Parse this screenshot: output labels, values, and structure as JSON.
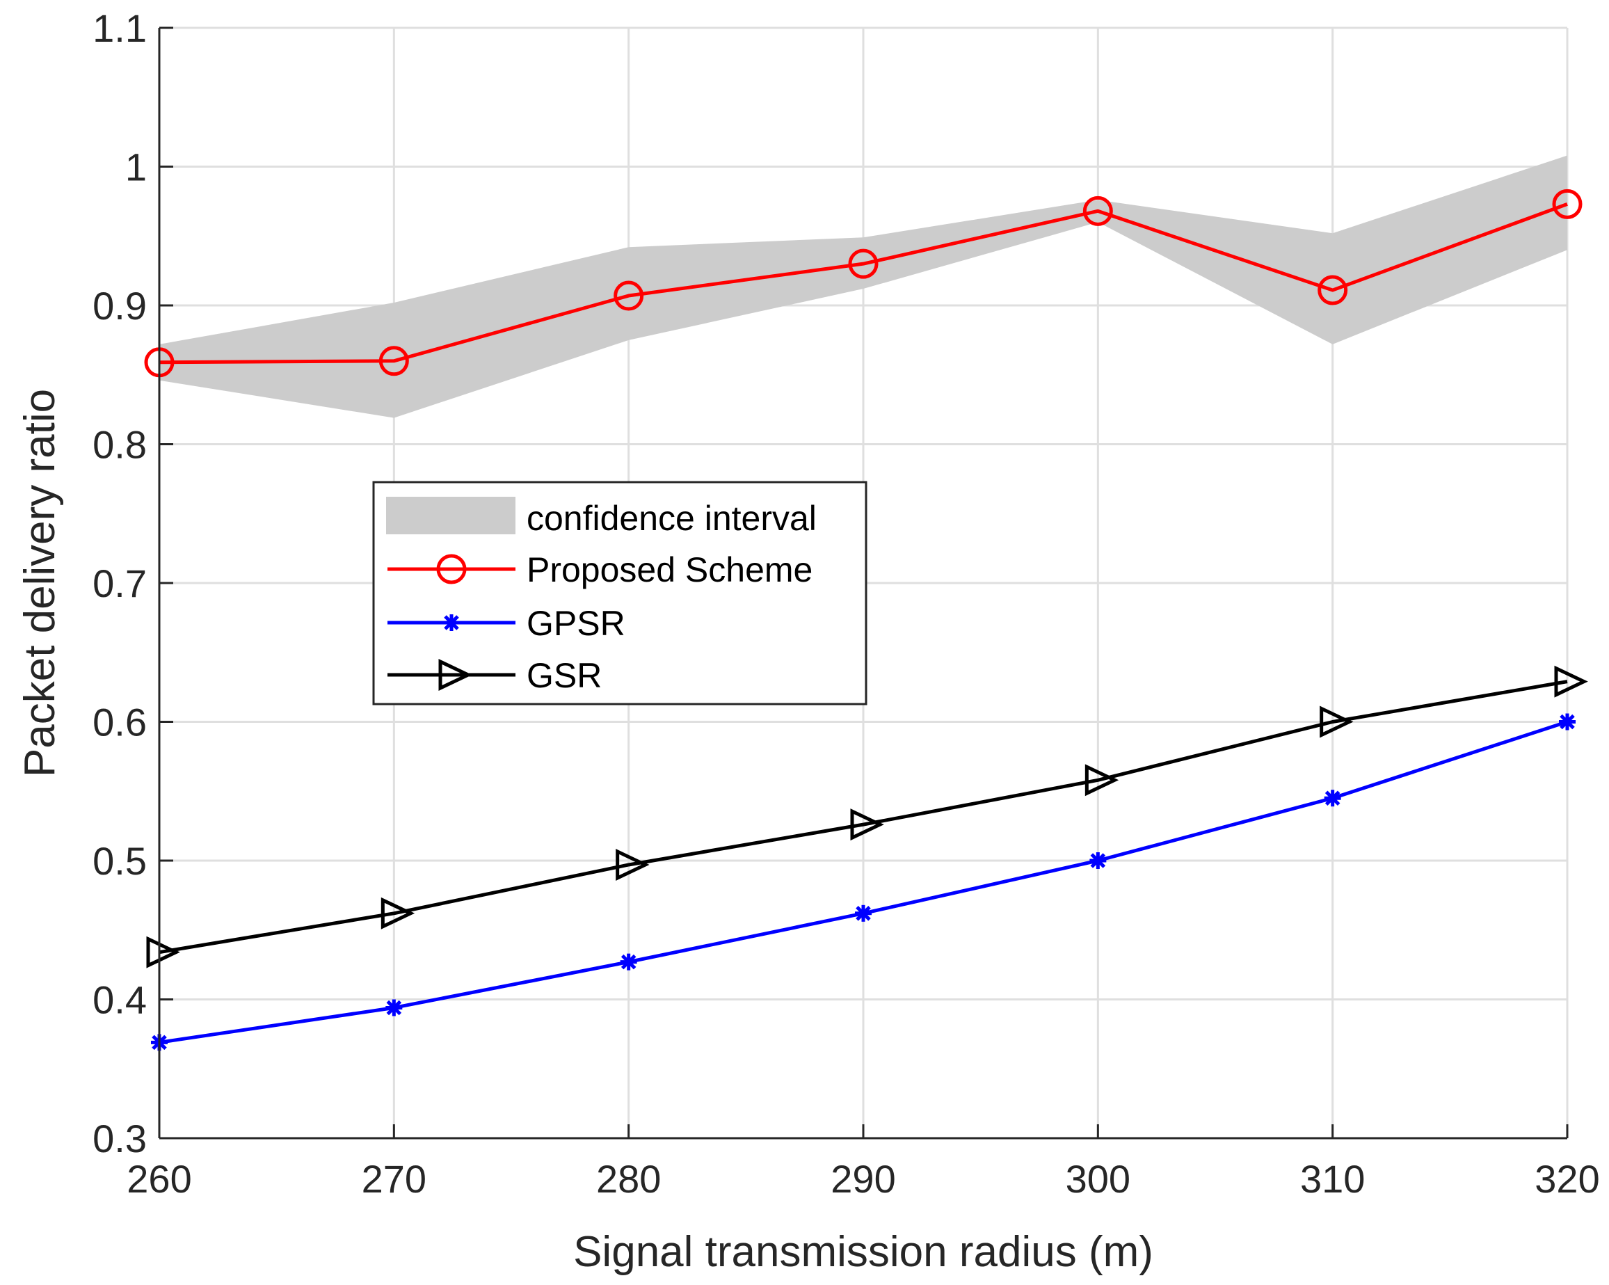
{
  "chart_data": {
    "type": "line",
    "title": "",
    "xlabel": "Signal transmission radius (m)",
    "ylabel": "Packet delivery ratio",
    "xlim": [
      260,
      320
    ],
    "ylim": [
      0.3,
      1.1
    ],
    "grid": true,
    "x": [
      260,
      270,
      280,
      290,
      300,
      310,
      320
    ],
    "xticks": [
      "260",
      "270",
      "280",
      "290",
      "300",
      "310",
      "320"
    ],
    "yticks": [
      "0.3",
      "0.4",
      "0.5",
      "0.6",
      "0.7",
      "0.8",
      "0.9",
      "1",
      "1.1"
    ],
    "confidence_interval": {
      "name": "confidence interval",
      "color": "#cccccc",
      "upper": [
        0.872,
        0.902,
        0.942,
        0.949,
        0.976,
        0.952,
        1.008
      ],
      "lower": [
        0.846,
        0.819,
        0.875,
        0.912,
        0.96,
        0.872,
        0.94
      ]
    },
    "series": [
      {
        "name": "Proposed Scheme",
        "color": "#ff0000",
        "marker": "circle",
        "values": [
          0.859,
          0.86,
          0.907,
          0.93,
          0.968,
          0.911,
          0.973
        ]
      },
      {
        "name": "GPSR",
        "color": "#0000ff",
        "marker": "asterisk",
        "values": [
          0.369,
          0.394,
          0.427,
          0.462,
          0.5,
          0.545,
          0.6
        ]
      },
      {
        "name": "GSR",
        "color": "#000000",
        "marker": "triangle-right",
        "values": [
          0.434,
          0.462,
          0.497,
          0.526,
          0.558,
          0.6,
          0.629
        ]
      }
    ],
    "legend_position": "middle-left"
  }
}
